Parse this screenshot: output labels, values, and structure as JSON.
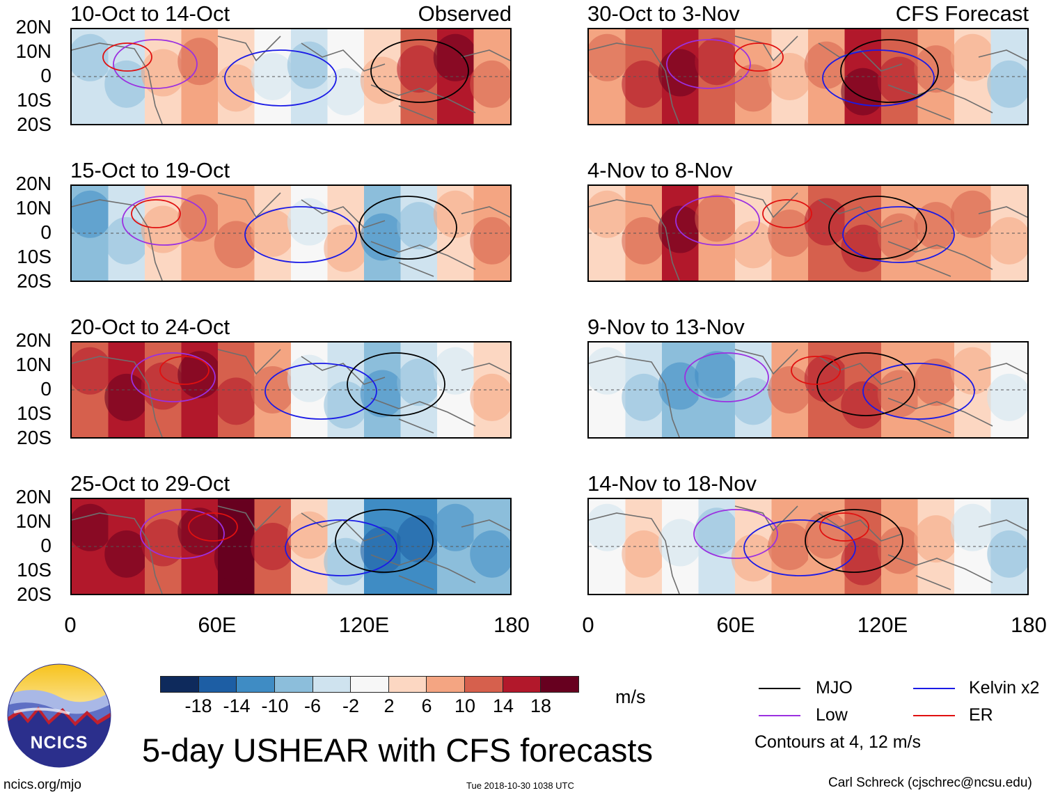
{
  "header": {
    "observed_label": "Observed",
    "forecast_label": "CFS Forecast"
  },
  "axes": {
    "lat_labels": [
      "20N",
      "10N",
      "0",
      "10S",
      "20S"
    ],
    "lon_labels": [
      "0",
      "60E",
      "120E",
      "180"
    ]
  },
  "panels": [
    {
      "title": "10-Oct to 14-Oct",
      "anomaly": [
        -4,
        -6,
        4,
        6,
        4,
        -2,
        -4,
        -2,
        2,
        10,
        14,
        8
      ]
    },
    {
      "title": "15-Oct to 19-Oct",
      "anomaly": [
        -8,
        -6,
        2,
        8,
        8,
        4,
        -2,
        2,
        -10,
        -6,
        4,
        6
      ]
    },
    {
      "title": "20-Oct to 24-Oct",
      "anomaly": [
        10,
        14,
        12,
        14,
        10,
        6,
        -2,
        -4,
        -8,
        -4,
        -2,
        2
      ]
    },
    {
      "title": "25-Oct to 29-Oct",
      "anomaly": [
        16,
        14,
        12,
        16,
        18,
        10,
        2,
        -6,
        -12,
        -14,
        -10,
        -8
      ]
    },
    {
      "title": "30-Oct to 3-Nov",
      "anomaly": [
        8,
        12,
        16,
        10,
        6,
        2,
        8,
        14,
        12,
        8,
        2,
        -6
      ]
    },
    {
      "title": "4-Nov to 8-Nov",
      "anomaly": [
        4,
        8,
        14,
        8,
        4,
        8,
        12,
        10,
        6,
        8,
        6,
        2
      ]
    },
    {
      "title": "9-Nov to 13-Nov",
      "anomaly": [
        -2,
        -4,
        -8,
        -10,
        -4,
        6,
        10,
        12,
        8,
        6,
        2,
        -2
      ]
    },
    {
      "title": "14-Nov to 18-Nov",
      "anomaly": [
        -2,
        2,
        -2,
        -4,
        2,
        6,
        8,
        10,
        6,
        2,
        -2,
        -4
      ]
    }
  ],
  "colorbar": {
    "ticks": [
      "-18",
      "-14",
      "-10",
      "-6",
      "-2",
      "2",
      "6",
      "10",
      "14",
      "18"
    ],
    "colors": [
      "#0e2a5c",
      "#1d5ea4",
      "#3f8cc4",
      "#8cbedb",
      "#cfe3ef",
      "#f7f7f7",
      "#fcd7c2",
      "#f4a582",
      "#d6604d",
      "#b2182b",
      "#67001f"
    ],
    "units": "m/s"
  },
  "legend": {
    "items": [
      {
        "label": "MJO",
        "color": "#000000"
      },
      {
        "label": "Kelvin x2",
        "color": "#1a1ae6"
      },
      {
        "label": "Low",
        "color": "#9b30e0"
      },
      {
        "label": "ER",
        "color": "#e01010"
      }
    ],
    "note": "Contours at 4, 12 m/s"
  },
  "title": "5-day USHEAR with CFS forecasts",
  "logo_text": "NCICS",
  "footer": {
    "url": "ncics.org/mjo",
    "timestamp": "Tue 2018-10-30 1038 UTC",
    "credit": "Carl Schreck (cjschrec@ncsu.edu)"
  }
}
